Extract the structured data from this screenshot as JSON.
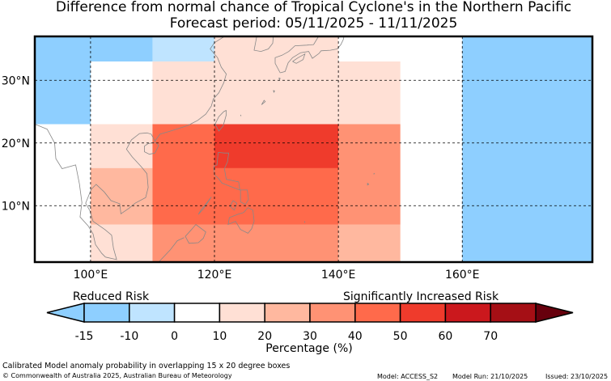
{
  "title": "Difference from normal chance of Tropical Cyclone's in the Northern Pacific",
  "subtitle": "Forecast period: 05/11/2025 - 11/11/2025",
  "colors": {
    "neg15": "#8ecfff",
    "neg10": "#bfe4ff",
    "zero": "#ffffff",
    "p0": "#ffe0d5",
    "p10": "#ffb89f",
    "p20": "#ff9274",
    "p30": "#ff6a4b",
    "p40": "#ef3b2c",
    "p50": "#cb181d",
    "p60": "#a50f15",
    "p70": "#67000d",
    "coast": "#888888"
  },
  "chart_data": {
    "type": "heatmap",
    "title": "Difference from normal chance of Tropical Cyclone's in the Northern Pacific",
    "subtitle": "Forecast period: 05/11/2025 - 11/11/2025",
    "lon_range": [
      91,
      181
    ],
    "lat_range": [
      1,
      37
    ],
    "lon_ticks": [
      100,
      120,
      140,
      160
    ],
    "lon_tick_labels": [
      "100°E",
      "120°E",
      "140°E",
      "160°E"
    ],
    "lat_ticks": [
      10,
      20,
      30
    ],
    "lat_tick_labels": [
      "10°N",
      "20°N",
      "30°N"
    ],
    "grid": true,
    "cells": [
      {
        "lon": [
          91,
          110
        ],
        "lat": [
          33,
          37
        ],
        "level": "neg15"
      },
      {
        "lon": [
          91,
          100
        ],
        "lat": [
          23,
          33
        ],
        "level": "neg15"
      },
      {
        "lon": [
          110,
          120
        ],
        "lat": [
          33,
          37
        ],
        "level": "neg10"
      },
      {
        "lon": [
          120,
          140
        ],
        "lat": [
          33,
          37
        ],
        "level": "p0"
      },
      {
        "lon": [
          110,
          140
        ],
        "lat": [
          23,
          33
        ],
        "level": "p0"
      },
      {
        "lon": [
          140,
          150
        ],
        "lat": [
          23,
          33
        ],
        "level": "p0"
      },
      {
        "lon": [
          160,
          181
        ],
        "lat": [
          1,
          37
        ],
        "level": "neg15"
      },
      {
        "lon": [
          100,
          110
        ],
        "lat": [
          16,
          23
        ],
        "level": "p0"
      },
      {
        "lon": [
          100,
          110
        ],
        "lat": [
          7,
          16
        ],
        "level": "p10"
      },
      {
        "lon": [
          100,
          110
        ],
        "lat": [
          1,
          7
        ],
        "level": "p0"
      },
      {
        "lon": [
          110,
          140
        ],
        "lat": [
          7,
          23
        ],
        "level": "p30"
      },
      {
        "lon": [
          120,
          140
        ],
        "lat": [
          16,
          23
        ],
        "level": "p40"
      },
      {
        "lon": [
          110,
          140
        ],
        "lat": [
          1,
          7
        ],
        "level": "p20"
      },
      {
        "lon": [
          140,
          150
        ],
        "lat": [
          7,
          23
        ],
        "level": "p20"
      },
      {
        "lon": [
          140,
          150
        ],
        "lat": [
          1,
          7
        ],
        "level": "p10"
      }
    ],
    "colorbar": {
      "ticks": [
        -15,
        -10,
        0,
        10,
        20,
        30,
        40,
        50,
        60,
        70
      ],
      "bins": [
        "neg15",
        "neg10",
        "zero",
        "p0",
        "p10",
        "p20",
        "p30",
        "p40",
        "p50",
        "p60"
      ],
      "extend_low": "neg15",
      "extend_high": "p70",
      "label": "Percentage (%)",
      "left_annotation": "Reduced Risk",
      "right_annotation": "Significantly Increased Risk"
    }
  },
  "footer": {
    "caption": "Calibrated Model anomaly probability in overlapping 15 x 20 degree boxes",
    "copyright": "© Commonwealth of Australia 2025, Australian Bureau of Meteorology",
    "model": "Model: ACCESS_S2",
    "model_run": "Model Run: 21/10/2025",
    "issued": "Issued: 23/10/2025"
  }
}
